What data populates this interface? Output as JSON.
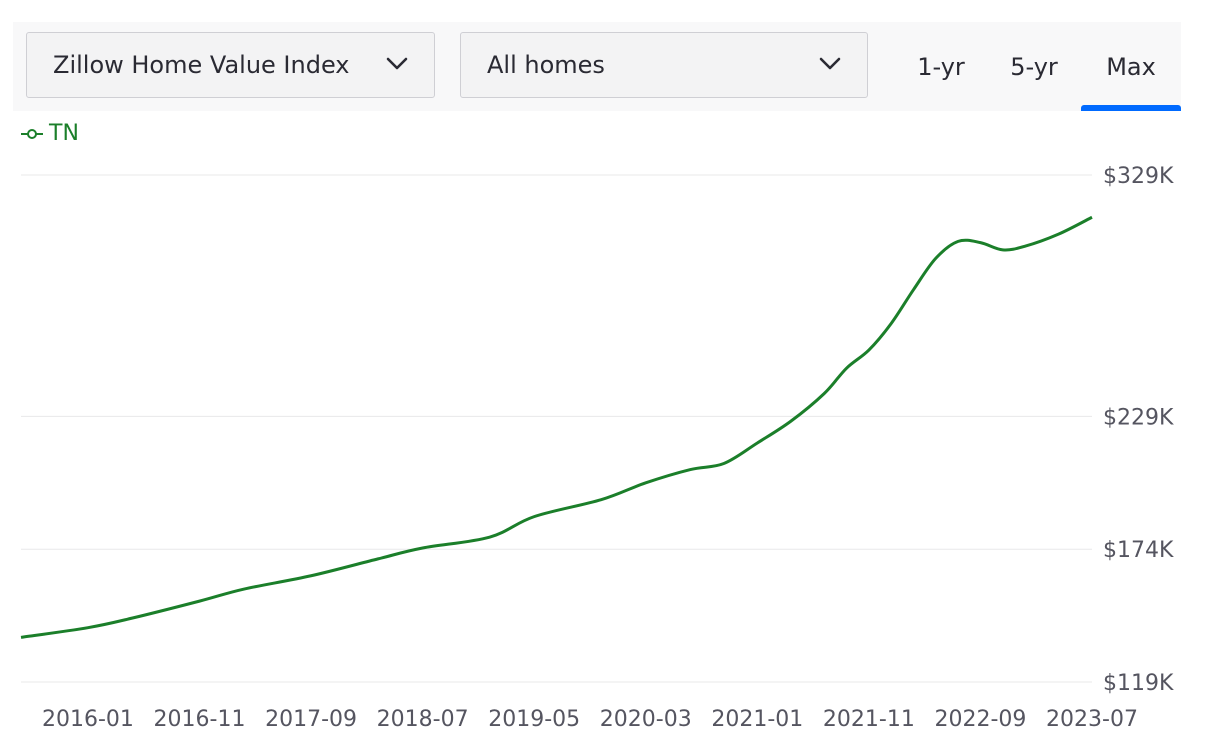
{
  "controls": {
    "metric_select": "Zillow Home Value Index",
    "home_type_select": "All homes",
    "range_tabs": [
      "1-yr",
      "5-yr",
      "Max"
    ],
    "active_tab": "Max"
  },
  "colors": {
    "series": "#1b7f2a",
    "active_tab_underline": "#006aff",
    "gridline": "#e8e8ea"
  },
  "chart_data": {
    "type": "line",
    "title": "",
    "xlabel": "",
    "ylabel": "",
    "legend": "top-left",
    "grid": true,
    "x_ticks": [
      "2016-01",
      "2016-11",
      "2017-09",
      "2018-07",
      "2019-05",
      "2020-03",
      "2021-01",
      "2021-11",
      "2022-09",
      "2023-07"
    ],
    "y_ticks": [
      "$119K",
      "$174K",
      "$229K",
      "$329K"
    ],
    "y_tick_values": [
      119,
      174,
      229,
      329
    ],
    "ylim": [
      119,
      329
    ],
    "series": [
      {
        "name": "TN",
        "x": [
          "2015-07",
          "2016-01",
          "2016-05",
          "2016-11",
          "2017-03",
          "2017-09",
          "2018-03",
          "2018-07",
          "2019-01",
          "2019-05",
          "2019-11",
          "2020-03",
          "2020-07",
          "2020-10",
          "2021-01",
          "2021-04",
          "2021-07",
          "2021-09",
          "2021-11",
          "2022-01",
          "2022-03",
          "2022-05",
          "2022-07",
          "2022-09",
          "2022-11",
          "2023-01",
          "2023-04",
          "2023-07"
        ],
        "values": [
          137.5,
          141.5,
          145.5,
          152.5,
          157.5,
          163.0,
          170.0,
          174.5,
          179.0,
          187.5,
          194.5,
          201.5,
          207.0,
          209.5,
          218.0,
          227.0,
          238.5,
          249.0,
          256.5,
          267.5,
          281.5,
          294.5,
          301.5,
          301.0,
          298.0,
          299.5,
          304.5,
          311.5
        ]
      }
    ]
  }
}
